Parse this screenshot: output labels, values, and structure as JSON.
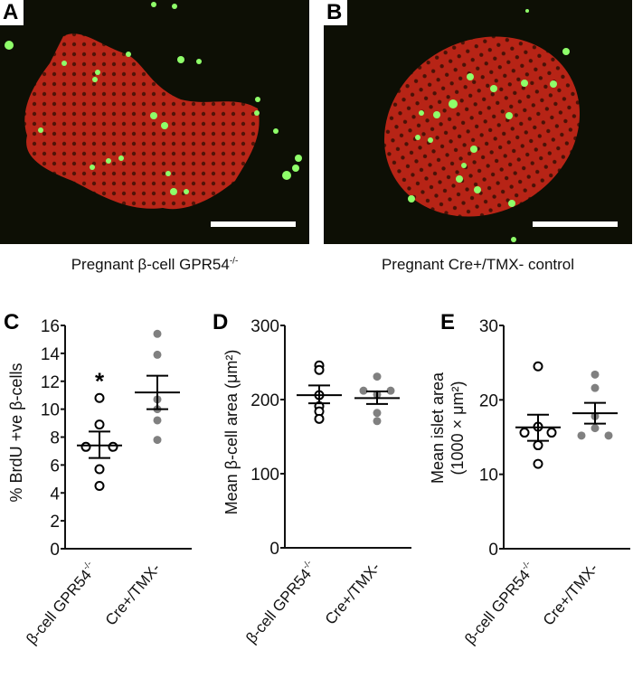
{
  "figure": {
    "panels_images": [
      {
        "letter": "A",
        "caption_main": "Pregnant β-cell GPR54",
        "caption_sup": "-/-"
      },
      {
        "letter": "B",
        "caption_main": "Pregnant Cre+/TMX- control",
        "caption_sup": ""
      }
    ],
    "colors": {
      "insulin_red": "#d42a1a",
      "brdu_green": "#7dff6a",
      "background_dark": "#0d0f05",
      "knockout_marker": "#000000",
      "control_marker": "#808080"
    }
  },
  "chart_data": [
    {
      "panel": "C",
      "type": "scatter",
      "title": "",
      "ylabel": "% BrdU +ve β-cells",
      "ylim": [
        0,
        16
      ],
      "yticks": [
        0,
        2,
        4,
        6,
        8,
        10,
        12,
        14,
        16
      ],
      "categories": [
        "β-cell GPR54-/-",
        "Cre+/TMX-"
      ],
      "annotation": "*",
      "series": [
        {
          "name": "β-cell GPR54-/-",
          "marker": "open-circle",
          "values": [
            10.8,
            8.9,
            7.3,
            7.3,
            5.7,
            4.5
          ],
          "mean": 7.4,
          "sem_upper": 8.4,
          "sem_lower": 6.5
        },
        {
          "name": "Cre+/TMX-",
          "marker": "filled-gray-circle",
          "values": [
            15.4,
            13.9,
            10.7,
            10.0,
            9.2,
            7.8
          ],
          "mean": 11.2,
          "sem_upper": 12.4,
          "sem_lower": 10.0
        }
      ]
    },
    {
      "panel": "D",
      "type": "scatter",
      "title": "",
      "ylabel": "Mean β-cell area (μm²)",
      "ylim": [
        0,
        300
      ],
      "yticks": [
        0,
        100,
        200,
        300
      ],
      "categories": [
        "β-cell GPR54-/-",
        "Cre+/TMX-"
      ],
      "series": [
        {
          "name": "β-cell GPR54-/-",
          "marker": "open-circle",
          "values": [
            246,
            240,
            206,
            191,
            184,
            174
          ],
          "mean": 206,
          "sem_upper": 219,
          "sem_lower": 195
        },
        {
          "name": "Cre+/TMX-",
          "marker": "filled-gray-circle",
          "values": [
            231,
            212,
            212,
            207,
            182,
            171
          ],
          "mean": 202,
          "sem_upper": 211,
          "sem_lower": 194
        }
      ]
    },
    {
      "panel": "E",
      "type": "scatter",
      "title": "",
      "ylabel": "Mean islet area",
      "ylabel2": "(1000 × μm²)",
      "ylim": [
        0,
        30
      ],
      "yticks": [
        0,
        10,
        20,
        30
      ],
      "categories": [
        "β-cell GPR54-/-",
        "Cre+/TMX-"
      ],
      "series": [
        {
          "name": "β-cell GPR54-/-",
          "marker": "open-circle",
          "values": [
            24.5,
            16.4,
            15.6,
            15.6,
            13.9,
            11.4
          ],
          "mean": 16.3,
          "sem_upper": 18.0,
          "sem_lower": 14.5
        },
        {
          "name": "Cre+/TMX-",
          "marker": "filled-gray-circle",
          "values": [
            23.4,
            21.6,
            17.8,
            16.2,
            15.2,
            15.2
          ],
          "mean": 18.2,
          "sem_upper": 19.6,
          "sem_lower": 16.8
        }
      ]
    }
  ],
  "xlabels": {
    "group1_main": "β-cell GPR54",
    "group1_sup": "-/-",
    "group2": "Cre+/TMX-"
  }
}
